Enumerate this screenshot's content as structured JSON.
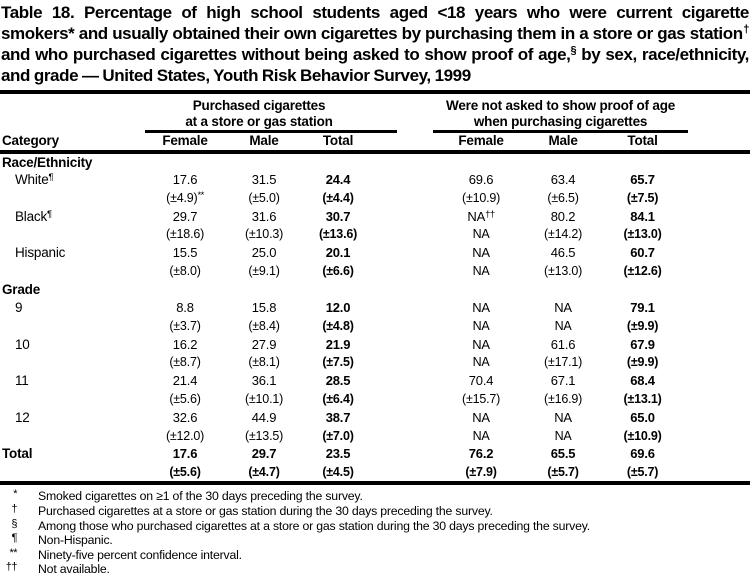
{
  "title": {
    "text": "Table 18. Percentage of high school students aged <18 years who were current cigarette smokers* and usually obtained their own cigarettes by purchasing them in a store or gas station^{†} and who purchased cigarettes without being asked to show proof of age,^{§} by sex, race/ethnicity, and grade — United States, Youth Risk Behavior Survey, 1999"
  },
  "table": {
    "category_header": "Category",
    "groups": [
      {
        "line1": "Purchased cigarettes",
        "line2": "at a store or gas station",
        "columns": [
          "Female",
          "Male",
          "Total"
        ]
      },
      {
        "line1": "Were not asked to show proof of age",
        "line2": "when purchasing cigarettes",
        "columns": [
          "Female",
          "Male",
          "Total"
        ]
      }
    ],
    "rows": [
      {
        "type": "section",
        "label": "Race/Ethnicity"
      },
      {
        "label": "White^{¶}",
        "indent": true,
        "values": [
          "17.6",
          "31.5",
          "24.4",
          "69.6",
          "63.4",
          "65.7"
        ],
        "ci": [
          "(±4.9)^{**}",
          "(±5.0)",
          "(±4.4)",
          "(±10.9)",
          "(±6.5)",
          "(±7.5)"
        ]
      },
      {
        "label": "Black^{¶}",
        "indent": true,
        "values": [
          "29.7",
          "31.6",
          "30.7",
          "NA^{††}",
          "80.2",
          "84.1"
        ],
        "ci": [
          "(±18.6)",
          "(±10.3)",
          "(±13.6)",
          "NA",
          "(±14.2)",
          "(±13.0)"
        ]
      },
      {
        "label": "Hispanic",
        "indent": true,
        "values": [
          "15.5",
          "25.0",
          "20.1",
          "NA",
          "46.5",
          "60.7"
        ],
        "ci": [
          "(±8.0)",
          "(±9.1)",
          "(±6.6)",
          "NA",
          "(±13.0)",
          "(±12.6)"
        ]
      },
      {
        "type": "section",
        "label": "Grade"
      },
      {
        "label": "9",
        "indent": true,
        "values": [
          "8.8",
          "15.8",
          "12.0",
          "NA",
          "NA",
          "79.1"
        ],
        "ci": [
          "(±3.7)",
          "(±8.4)",
          "(±4.8)",
          "NA",
          "NA",
          "(±9.9)"
        ]
      },
      {
        "label": "10",
        "indent": true,
        "values": [
          "16.2",
          "27.9",
          "21.9",
          "NA",
          "61.6",
          "67.9"
        ],
        "ci": [
          "(±8.7)",
          "(±8.1)",
          "(±7.5)",
          "NA",
          "(±17.1)",
          "(±9.9)"
        ]
      },
      {
        "label": "11",
        "indent": true,
        "values": [
          "21.4",
          "36.1",
          "28.5",
          "70.4",
          "67.1",
          "68.4"
        ],
        "ci": [
          "(±5.6)",
          "(±10.1)",
          "(±6.4)",
          "(±15.7)",
          "(±16.9)",
          "(±13.1)"
        ]
      },
      {
        "label": "12",
        "indent": true,
        "values": [
          "32.6",
          "44.9",
          "38.7",
          "NA",
          "NA",
          "65.0"
        ],
        "ci": [
          "(±12.0)",
          "(±13.5)",
          "(±7.0)",
          "NA",
          "NA",
          "(±10.9)"
        ]
      },
      {
        "label": "Total",
        "bold": true,
        "values": [
          "17.6",
          "29.7",
          "23.5",
          "76.2",
          "65.5",
          "69.6"
        ],
        "ci": [
          "(±5.6)",
          "(±4.7)",
          "(±4.5)",
          "(±7.9)",
          "(±5.7)",
          "(±5.7)"
        ]
      }
    ]
  },
  "footnotes": [
    {
      "marker": "*",
      "text": "Smoked cigarettes on ≥1 of the 30 days preceding the survey."
    },
    {
      "marker": "†",
      "text": "Purchased cigarettes at a store or gas station during the 30 days preceding the survey."
    },
    {
      "marker": "§",
      "text": "Among those who purchased cigarettes at a store or gas station during the 30 days preceding the survey."
    },
    {
      "marker": "¶",
      "text": "Non-Hispanic."
    },
    {
      "marker": "**",
      "text": "Ninety-five percent confidence interval."
    },
    {
      "marker": "††",
      "text": "Not available."
    }
  ],
  "colors": {
    "text": "#000000",
    "background": "#ffffff",
    "rule": "#000000"
  }
}
